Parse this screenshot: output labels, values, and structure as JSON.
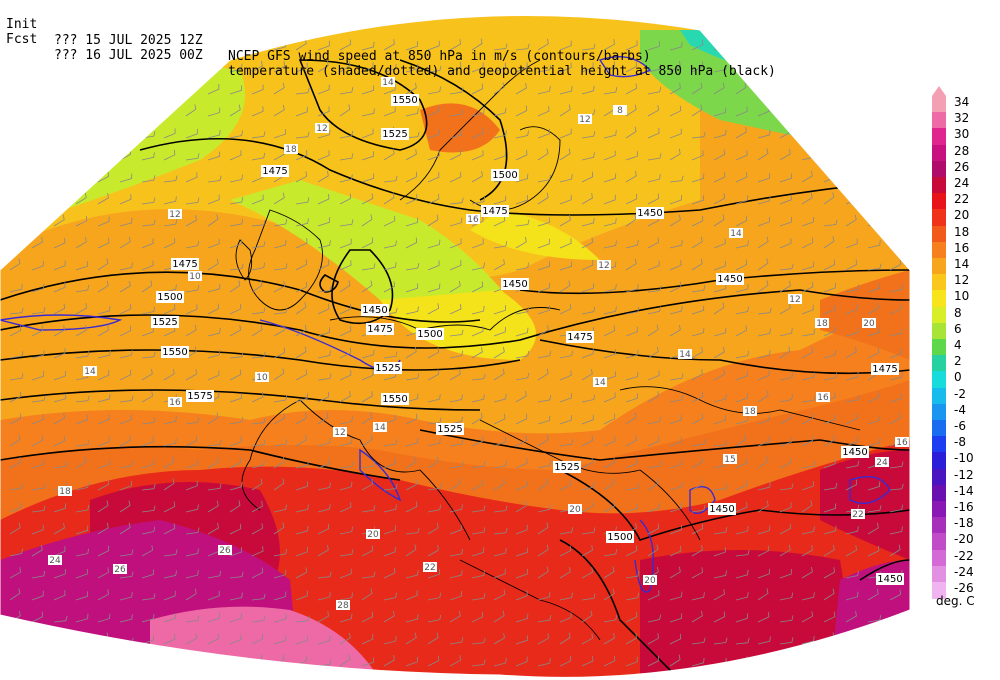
{
  "header": {
    "init_label": "Init",
    "init_time": "??? 15 JUL 2025 12Z",
    "fcst_label": "Fcst",
    "fcst_time": "??? 16 JUL 2025 00Z",
    "title_line1": "NCEP GFS wind speed at 850 hPa in m/s (contours/barbs)",
    "title_line2": "temperature (shaded/dotted) and geopotential height at 850 hPa (black)"
  },
  "legend": {
    "unit": "deg. C",
    "levels": [
      {
        "label": "34",
        "color": "#f4a0b4"
      },
      {
        "label": "32",
        "color": "#ee6aa6"
      },
      {
        "label": "30",
        "color": "#e0268e"
      },
      {
        "label": "28",
        "color": "#c8107e"
      },
      {
        "label": "26",
        "color": "#b00a6a"
      },
      {
        "label": "24",
        "color": "#c80a3a"
      },
      {
        "label": "22",
        "color": "#e8141a"
      },
      {
        "label": "20",
        "color": "#f0321a"
      },
      {
        "label": "18",
        "color": "#f25a1c"
      },
      {
        "label": "16",
        "color": "#f6801e"
      },
      {
        "label": "14",
        "color": "#f8a51e"
      },
      {
        "label": "12",
        "color": "#fac81c"
      },
      {
        "label": "10",
        "color": "#f8e41a"
      },
      {
        "label": "8",
        "color": "#d8ee28"
      },
      {
        "label": "6",
        "color": "#a8e436"
      },
      {
        "label": "4",
        "color": "#5cd84a"
      },
      {
        "label": "2",
        "color": "#28d2a0"
      },
      {
        "label": "0",
        "color": "#18dcdc"
      },
      {
        "label": "-2",
        "color": "#18bcec"
      },
      {
        "label": "-4",
        "color": "#1a96f0"
      },
      {
        "label": "-6",
        "color": "#1a6cf0"
      },
      {
        "label": "-8",
        "color": "#1c3ef0"
      },
      {
        "label": "-10",
        "color": "#2a1ed8"
      },
      {
        "label": "-12",
        "color": "#4a14c0"
      },
      {
        "label": "-14",
        "color": "#6a10b0"
      },
      {
        "label": "-16",
        "color": "#8a18b4"
      },
      {
        "label": "-18",
        "color": "#a630bc"
      },
      {
        "label": "-20",
        "color": "#c04cc8"
      },
      {
        "label": "-22",
        "color": "#d46ad6"
      },
      {
        "label": "-24",
        "color": "#e290e2"
      },
      {
        "label": "-26",
        "color": "#f0b4f0"
      }
    ]
  },
  "map": {
    "colors": {
      "green_yellow": "#c8ea2c",
      "yellow": "#f4e21a",
      "yellow_orange": "#f8c21c",
      "orange": "#f69a1e",
      "dark_orange": "#f2721c",
      "red": "#e82a1a",
      "crimson": "#c80a3a",
      "magenta": "#c0107e",
      "pink": "#ee6aa6",
      "green": "#7cd84a",
      "teal": "#28d8b0",
      "contour_black": "#000000",
      "contour_blue": "#3a2ad0"
    },
    "height_labels": [
      {
        "text": "1550"
      },
      {
        "text": "1525"
      },
      {
        "text": "1475"
      },
      {
        "text": "1500"
      },
      {
        "text": "1475"
      },
      {
        "text": "1450"
      },
      {
        "text": "1475"
      },
      {
        "text": "1450"
      },
      {
        "text": "1450"
      },
      {
        "text": "1500"
      },
      {
        "text": "1525"
      },
      {
        "text": "1450"
      },
      {
        "text": "1500"
      },
      {
        "text": "1475"
      },
      {
        "text": "1550"
      },
      {
        "text": "1525"
      },
      {
        "text": "1575"
      },
      {
        "text": "1550"
      },
      {
        "text": "1525"
      },
      {
        "text": "1525"
      },
      {
        "text": "1450"
      },
      {
        "text": "1500"
      },
      {
        "text": "1450"
      },
      {
        "text": "1475"
      },
      {
        "text": "1450"
      },
      {
        "text": "1475"
      }
    ],
    "wind_labels": [
      {
        "text": "14"
      },
      {
        "text": "12"
      },
      {
        "text": "18"
      },
      {
        "text": "12"
      },
      {
        "text": "16"
      },
      {
        "text": "10"
      },
      {
        "text": "14"
      },
      {
        "text": "12"
      },
      {
        "text": "14"
      },
      {
        "text": "12"
      },
      {
        "text": "14"
      },
      {
        "text": "16"
      },
      {
        "text": "14"
      },
      {
        "text": "15"
      },
      {
        "text": "16"
      },
      {
        "text": "18"
      },
      {
        "text": "16"
      },
      {
        "text": "18"
      },
      {
        "text": "20"
      },
      {
        "text": "24"
      },
      {
        "text": "22"
      },
      {
        "text": "20"
      },
      {
        "text": "18"
      },
      {
        "text": "20"
      },
      {
        "text": "22"
      },
      {
        "text": "26"
      },
      {
        "text": "26"
      },
      {
        "text": "24"
      },
      {
        "text": "28"
      },
      {
        "text": "20"
      },
      {
        "text": "14"
      },
      {
        "text": "12"
      },
      {
        "text": "10"
      },
      {
        "text": "8"
      },
      {
        "text": "12"
      }
    ]
  }
}
